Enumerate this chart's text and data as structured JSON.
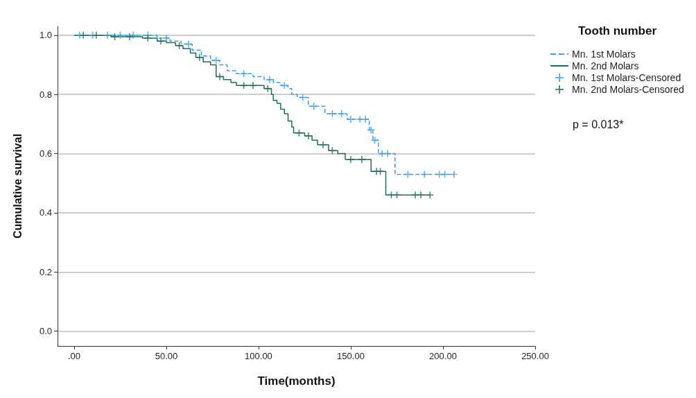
{
  "chart_data": {
    "type": "step",
    "xlabel": "Time(months)",
    "ylabel": "Cumulative survival",
    "legend_title": "Tooth number",
    "legend": "right",
    "grid": "y",
    "annotations": [
      "p = 0.013*"
    ],
    "xlim": [
      -9,
      250
    ],
    "xticks": [
      {
        "value": 0,
        "label": ".00"
      },
      {
        "value": 50,
        "label": "50.00"
      },
      {
        "value": 100,
        "label": "100.00"
      },
      {
        "value": 150,
        "label": "150.00"
      },
      {
        "value": 200,
        "label": "200.00"
      },
      {
        "value": 250,
        "label": "250.00"
      }
    ],
    "ylim": [
      -0.05,
      1.03
    ],
    "yticks": [
      {
        "value": 0,
        "label": "0.0"
      },
      {
        "value": 0.2,
        "label": "0.2"
      },
      {
        "value": 0.4,
        "label": "0.4"
      },
      {
        "value": 0.6,
        "label": "0.6"
      },
      {
        "value": 0.8,
        "label": "0.8"
      },
      {
        "value": 1,
        "label": "1.0"
      }
    ],
    "series": [
      {
        "name": "Mn. 1st Molars",
        "color": "#3a9ee6",
        "line_style": "dashed",
        "marker": "none",
        "x": [
          0,
          45,
          52,
          58,
          64,
          69,
          74,
          79,
          83,
          88,
          97,
          103,
          108,
          112,
          116,
          118,
          121,
          127,
          136,
          148,
          160,
          162,
          165,
          174,
          206
        ],
        "values": [
          1.0,
          0.99,
          0.98,
          0.97,
          0.95,
          0.93,
          0.915,
          0.9,
          0.88,
          0.87,
          0.86,
          0.85,
          0.84,
          0.83,
          0.82,
          0.8,
          0.79,
          0.76,
          0.735,
          0.716,
          0.68,
          0.645,
          0.6,
          0.53,
          0.53
        ]
      },
      {
        "name": "Mn. 2nd Molars",
        "color": "#1f6b5e",
        "line_style": "solid",
        "marker": "none",
        "x": [
          0,
          20,
          37,
          45,
          50,
          55,
          59,
          63,
          66,
          70,
          74,
          77,
          81,
          85,
          88,
          103,
          107,
          108,
          110,
          112,
          114,
          116,
          118,
          119,
          125,
          129,
          132,
          138,
          143,
          147,
          161,
          169,
          193
        ],
        "values": [
          1.0,
          0.995,
          0.99,
          0.98,
          0.975,
          0.965,
          0.955,
          0.94,
          0.925,
          0.91,
          0.9,
          0.86,
          0.85,
          0.84,
          0.83,
          0.82,
          0.8,
          0.78,
          0.77,
          0.75,
          0.735,
          0.71,
          0.69,
          0.67,
          0.66,
          0.645,
          0.63,
          0.61,
          0.6,
          0.58,
          0.54,
          0.46,
          0.46
        ]
      },
      {
        "name": "Mn. 1st Molars-Censored",
        "type": "scatter",
        "color": "#3a9ee6",
        "marker": "cross",
        "x": [
          3,
          10,
          18,
          25,
          32,
          40,
          50,
          62,
          77,
          92,
          106,
          114,
          124,
          130,
          140,
          145,
          150,
          155,
          158,
          161,
          163,
          167,
          170,
          181,
          190,
          198,
          201,
          206
        ],
        "values": [
          1.0,
          1.0,
          1.0,
          1.0,
          1.0,
          1.0,
          0.99,
          0.97,
          0.915,
          0.87,
          0.85,
          0.83,
          0.79,
          0.76,
          0.735,
          0.735,
          0.716,
          0.716,
          0.716,
          0.68,
          0.645,
          0.6,
          0.6,
          0.53,
          0.53,
          0.53,
          0.53,
          0.53
        ]
      },
      {
        "name": "Mn. 2nd Molars-Censored",
        "type": "scatter",
        "color": "#1f6b5e",
        "marker": "cross",
        "x": [
          5,
          12,
          22,
          30,
          40,
          47,
          57,
          68,
          79,
          92,
          97,
          105,
          122,
          127,
          135,
          140,
          150,
          156,
          164,
          166,
          172,
          175,
          185,
          188,
          193
        ],
        "values": [
          1.0,
          1.0,
          0.995,
          0.995,
          0.99,
          0.98,
          0.965,
          0.925,
          0.86,
          0.83,
          0.83,
          0.82,
          0.67,
          0.66,
          0.63,
          0.61,
          0.58,
          0.58,
          0.54,
          0.54,
          0.46,
          0.46,
          0.46,
          0.46,
          0.46
        ]
      }
    ]
  }
}
